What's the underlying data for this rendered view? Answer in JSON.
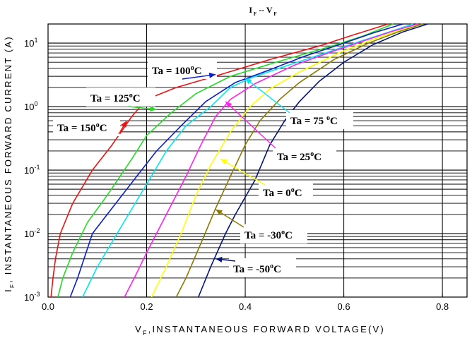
{
  "chart_data": {
    "type": "line",
    "title": {
      "main": "I",
      "sub1": "F",
      "mid": " -- ",
      "main2": "V",
      "sub2": "F"
    },
    "xlabel": {
      "main": "V",
      "sub": "F",
      "rest": ",INSTANTANEOUS FORWARD VOLTAGE(V)"
    },
    "ylabel": {
      "main": "I",
      "sub": "F",
      "rest": ", INSTANTANEOUS FORWARD CURRENT (A)"
    },
    "xlim": [
      0.0,
      0.85
    ],
    "ylim": [
      0.001,
      20
    ],
    "yscale": "log",
    "grid": true,
    "x_ticks": [
      "0.0",
      "0.2",
      "0.4",
      "0.6",
      "0.8"
    ],
    "x_tick_values": [
      0.0,
      0.2,
      0.4,
      0.6,
      0.8
    ],
    "y_ticks": [
      {
        "value": 0.001,
        "base": "10",
        "exp": "-3"
      },
      {
        "value": 0.01,
        "base": "10",
        "exp": "-2"
      },
      {
        "value": 0.1,
        "base": "10",
        "exp": "-1"
      },
      {
        "value": 1,
        "base": "10",
        "exp": "0"
      },
      {
        "value": 10,
        "base": "10",
        "exp": "1"
      }
    ],
    "series": [
      {
        "name": "Ta = 150°C",
        "color": "#ee1111",
        "points": [
          [
            0.006,
            0.001
          ],
          [
            0.01,
            0.002
          ],
          [
            0.015,
            0.004
          ],
          [
            0.025,
            0.01
          ],
          [
            0.05,
            0.03
          ],
          [
            0.09,
            0.1
          ],
          [
            0.13,
            0.25
          ],
          [
            0.17,
            0.7
          ],
          [
            0.2,
            1.3
          ],
          [
            0.26,
            2.0
          ],
          [
            0.35,
            3.2
          ],
          [
            0.45,
            5.5
          ],
          [
            0.55,
            9.0
          ],
          [
            0.62,
            13.5
          ],
          [
            0.69,
            20
          ]
        ]
      },
      {
        "name": "Ta = 125°C",
        "color": "#22dd22",
        "points": [
          [
            0.02,
            0.001
          ],
          [
            0.03,
            0.002
          ],
          [
            0.05,
            0.005
          ],
          [
            0.08,
            0.015
          ],
          [
            0.12,
            0.04
          ],
          [
            0.17,
            0.15
          ],
          [
            0.2,
            0.35
          ],
          [
            0.25,
            0.8
          ],
          [
            0.3,
            1.6
          ],
          [
            0.37,
            3.0
          ],
          [
            0.47,
            5.2
          ],
          [
            0.57,
            8.7
          ],
          [
            0.64,
            13
          ],
          [
            0.7,
            20
          ]
        ]
      },
      {
        "name": "Ta = 100°C",
        "color": "#0a1ecc",
        "points": [
          [
            0.045,
            0.001
          ],
          [
            0.06,
            0.002
          ],
          [
            0.09,
            0.01
          ],
          [
            0.12,
            0.02
          ],
          [
            0.18,
            0.08
          ],
          [
            0.22,
            0.2
          ],
          [
            0.27,
            0.5
          ],
          [
            0.32,
            1.2
          ],
          [
            0.38,
            2.4
          ],
          [
            0.45,
            3.8
          ],
          [
            0.52,
            6.2
          ],
          [
            0.6,
            10
          ],
          [
            0.66,
            14.5
          ],
          [
            0.72,
            20
          ]
        ]
      },
      {
        "name": "Ta = 75 °C",
        "color": "#00e8f2",
        "points": [
          [
            0.07,
            0.001
          ],
          [
            0.1,
            0.003
          ],
          [
            0.14,
            0.01
          ],
          [
            0.2,
            0.06
          ],
          [
            0.24,
            0.2
          ],
          [
            0.28,
            0.5
          ],
          [
            0.33,
            1.0
          ],
          [
            0.37,
            2.0
          ],
          [
            0.41,
            2.8
          ],
          [
            0.48,
            4.3
          ],
          [
            0.56,
            6.9
          ],
          [
            0.63,
            10.5
          ],
          [
            0.69,
            14.8
          ],
          [
            0.74,
            20
          ]
        ]
      },
      {
        "name": "Ta = 25°C",
        "color": "#ff22ee",
        "points": [
          [
            0.155,
            0.001
          ],
          [
            0.175,
            0.002
          ],
          [
            0.2,
            0.005
          ],
          [
            0.24,
            0.02
          ],
          [
            0.28,
            0.08
          ],
          [
            0.31,
            0.25
          ],
          [
            0.34,
            0.7
          ],
          [
            0.37,
            1.3
          ],
          [
            0.42,
            2.3
          ],
          [
            0.5,
            4.5
          ],
          [
            0.58,
            7.5
          ],
          [
            0.65,
            11.5
          ],
          [
            0.7,
            15.5
          ],
          [
            0.75,
            20
          ]
        ]
      },
      {
        "name": "Ta = 0°C",
        "color": "#ffff00",
        "points": [
          [
            0.21,
            0.001
          ],
          [
            0.24,
            0.003
          ],
          [
            0.27,
            0.01
          ],
          [
            0.3,
            0.04
          ],
          [
            0.33,
            0.12
          ],
          [
            0.37,
            0.4
          ],
          [
            0.41,
            1.0
          ],
          [
            0.45,
            1.9
          ],
          [
            0.51,
            3.5
          ],
          [
            0.59,
            7.0
          ],
          [
            0.66,
            11.5
          ],
          [
            0.71,
            15.5
          ],
          [
            0.76,
            20
          ]
        ]
      },
      {
        "name": "Ta = -30°C",
        "color": "#8a7a00",
        "points": [
          [
            0.26,
            0.001
          ],
          [
            0.28,
            0.002
          ],
          [
            0.31,
            0.007
          ],
          [
            0.34,
            0.025
          ],
          [
            0.37,
            0.08
          ],
          [
            0.4,
            0.25
          ],
          [
            0.43,
            0.6
          ],
          [
            0.47,
            1.3
          ],
          [
            0.51,
            2.4
          ],
          [
            0.58,
            5.5
          ],
          [
            0.65,
            10
          ],
          [
            0.71,
            15
          ],
          [
            0.76,
            20
          ]
        ]
      },
      {
        "name": "Ta = -50°C",
        "color": "#04147a",
        "points": [
          [
            0.305,
            0.001
          ],
          [
            0.33,
            0.003
          ],
          [
            0.36,
            0.01
          ],
          [
            0.38,
            0.02
          ],
          [
            0.42,
            0.07
          ],
          [
            0.45,
            0.25
          ],
          [
            0.48,
            0.6
          ],
          [
            0.51,
            1.2
          ],
          [
            0.55,
            2.5
          ],
          [
            0.6,
            5.0
          ],
          [
            0.66,
            9.5
          ],
          [
            0.72,
            15
          ],
          [
            0.77,
            20
          ]
        ]
      }
    ],
    "annotations": [
      {
        "label": "Ta = 150",
        "unit": "C",
        "color": "#ee1111",
        "target": [
          0.16,
          0.6
        ]
      },
      {
        "label": "Ta = 125",
        "unit": "C",
        "color": "#22dd22",
        "target": [
          0.22,
          0.9
        ]
      },
      {
        "label": "Ta = 100",
        "unit": "C",
        "color": "#0a1ecc",
        "target": [
          0.34,
          3.2
        ]
      },
      {
        "label": "Ta = 75 ",
        "unit": "C",
        "color": "#00e8f2",
        "target": [
          0.4,
          2.8
        ]
      },
      {
        "label": "Ta = 25",
        "unit": "C",
        "color": "#ff22ee",
        "target": [
          0.36,
          1.2
        ]
      },
      {
        "label": "Ta = 0",
        "unit": "C",
        "color": "#ffff00",
        "target": [
          0.35,
          0.15
        ]
      },
      {
        "label": "Ta = -30",
        "unit": "C",
        "color": "#8a7a00",
        "target": [
          0.34,
          0.024
        ]
      },
      {
        "label": "Ta = -50",
        "unit": "C",
        "color": "#04147a",
        "target": [
          0.34,
          0.004
        ]
      }
    ]
  }
}
